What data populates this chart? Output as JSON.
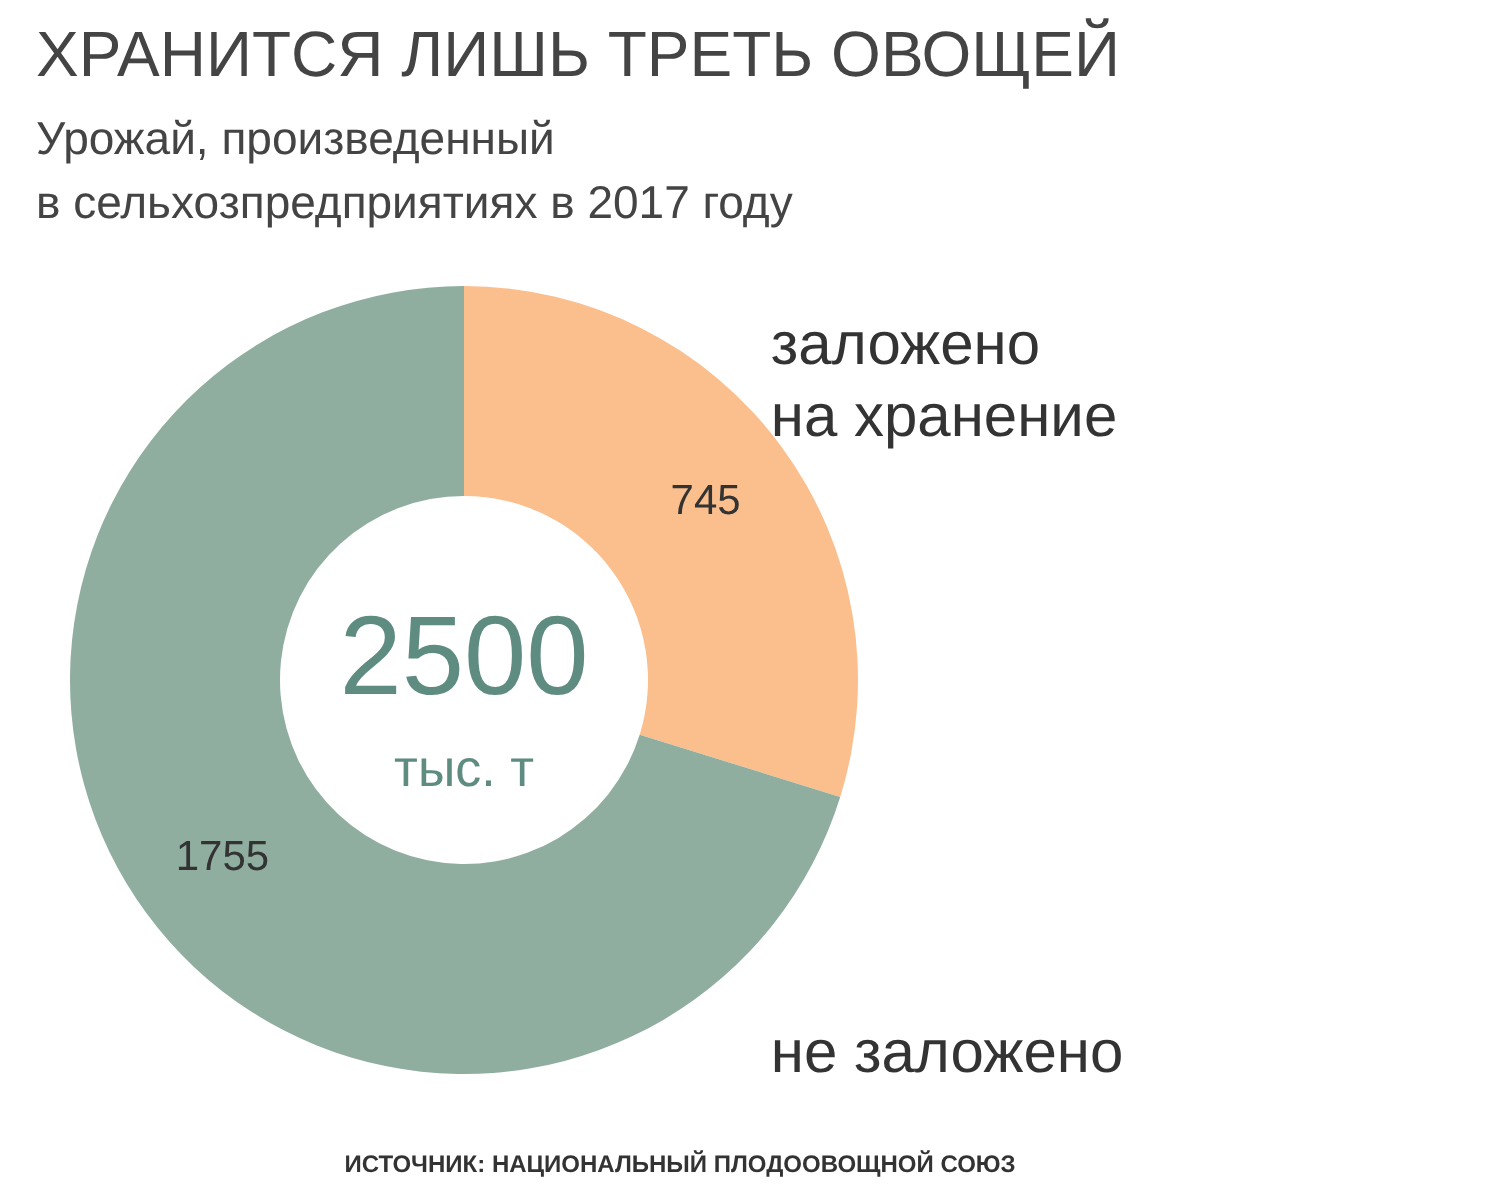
{
  "chart_data": {
    "type": "donut",
    "title": "ХРАНИТСЯ ЛИШЬ ТРЕТЬ ОВОЩЕЙ",
    "subtitle": "Урожай, произведенный в сельхозпредприятиях в 2017 году",
    "categories": [
      "заложено на хранение",
      "не заложено"
    ],
    "values": [
      745,
      1755
    ],
    "colors": [
      "#fbbf8e",
      "#8fae9f"
    ],
    "data_labels": true,
    "annotations": [
      "2500",
      "тыс. т",
      "ИСТОЧНИК: НАЦИОНАЛЬНЫЙ ПЛОДООВОЩНОЙ СОЮЗ"
    ]
  }
}
